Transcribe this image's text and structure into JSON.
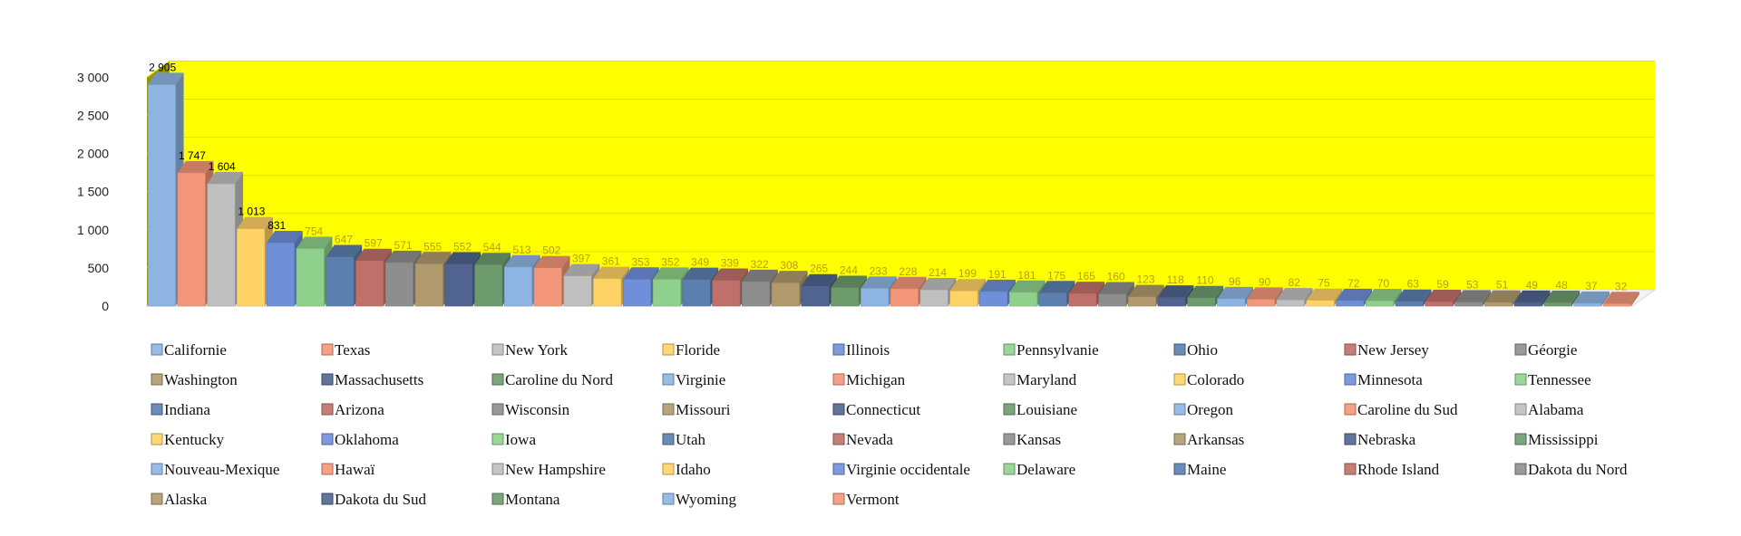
{
  "chart_data": {
    "type": "bar",
    "title": "",
    "xlabel": "",
    "ylabel": "",
    "ylim": [
      0,
      3000
    ],
    "y_ticks": [
      "0",
      "500",
      "1 000",
      "1 500",
      "2 000",
      "2 500",
      "3 000"
    ],
    "y_tick_values": [
      0,
      500,
      1000,
      1500,
      2000,
      2500,
      3000
    ],
    "grid": true,
    "legend_position": "bottom",
    "plot_background": "#ffff00",
    "floor_color": "#9b9500",
    "palette": [
      "#8db4e2",
      "#f4967a",
      "#bfbfbf",
      "#ffd266",
      "#6f8fd9",
      "#8fd18c",
      "#5b7fae",
      "#c0706a",
      "#8e8e8e",
      "#b09a6e",
      "#51648f",
      "#6d9b6e"
    ],
    "categories": [
      "Californie",
      "Texas",
      "New York",
      "Floride",
      "Illinois",
      "Pennsylvanie",
      "Ohio",
      "New Jersey",
      "Géorgie",
      "Washington",
      "Massachusetts",
      "Caroline du Nord",
      "Virginie",
      "Michigan",
      "Maryland",
      "Colorado",
      "Minnesota",
      "Tennessee",
      "Indiana",
      "Arizona",
      "Wisconsin",
      "Missouri",
      "Connecticut",
      "Louisiane",
      "Oregon",
      "Caroline du Sud",
      "Alabama",
      "Kentucky",
      "Oklahoma",
      "Iowa",
      "Utah",
      "Nevada",
      "Kansas",
      "Arkansas",
      "Nebraska",
      "Mississippi",
      "Nouveau-Mexique",
      "Hawaï",
      "New Hampshire",
      "Idaho",
      "Virginie occidentale",
      "Delaware",
      "Maine",
      "Rhode Island",
      "Dakota du Nord",
      "Alaska",
      "Dakota du Sud",
      "Montana",
      "Wyoming",
      "Vermont"
    ],
    "values": [
      2905,
      1747,
      1604,
      1013,
      831,
      754,
      647,
      597,
      571,
      555,
      552,
      544,
      513,
      502,
      397,
      361,
      353,
      352,
      349,
      339,
      322,
      308,
      265,
      244,
      233,
      228,
      214,
      199,
      191,
      181,
      175,
      165,
      160,
      123,
      118,
      110,
      96,
      90,
      82,
      75,
      72,
      70,
      63,
      59,
      53,
      51,
      49,
      48,
      37,
      32
    ],
    "data_labels": [
      "2 905",
      "1 747",
      "1 604",
      "1 013",
      "831",
      "754",
      "647",
      "597",
      "571",
      "555",
      "552",
      "544",
      "513",
      "502",
      "397",
      "361",
      "353",
      "352",
      "349",
      "339",
      "322",
      "308",
      "265",
      "244",
      "233",
      "228",
      "214",
      "199",
      "191",
      "181",
      "175",
      "165",
      "160",
      "123",
      "118",
      "110",
      "96",
      "90",
      "82",
      "75",
      "72",
      "70",
      "63",
      "59",
      "53",
      "51",
      "49",
      "48",
      "37",
      "32"
    ]
  }
}
